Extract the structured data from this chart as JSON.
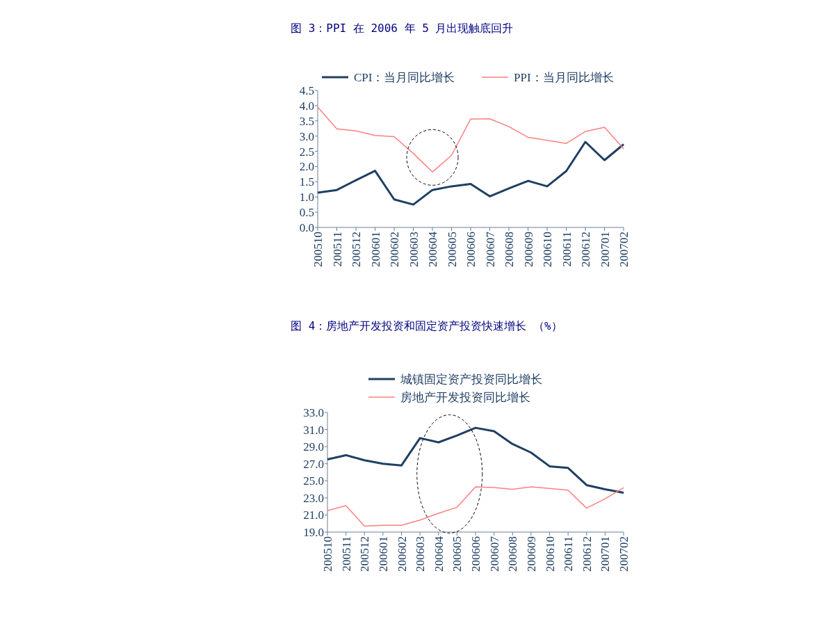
{
  "chart_data": [
    {
      "type": "line",
      "title": "图 3：PPI 在 2006 年 5 月出现触底回升",
      "categories": [
        "200510",
        "200511",
        "200512",
        "200601",
        "200602",
        "200603",
        "200604",
        "200605",
        "200606",
        "200607",
        "200608",
        "200609",
        "200610",
        "200611",
        "200612",
        "200701",
        "200702"
      ],
      "series": [
        {
          "name": "CPI：当月同比增长",
          "color": "#1f3f63",
          "values": [
            1.14,
            1.23,
            1.55,
            1.86,
            0.92,
            0.75,
            1.23,
            1.35,
            1.43,
            1.02,
            1.28,
            1.53,
            1.35,
            1.85,
            2.81,
            2.21,
            2.73
          ]
        },
        {
          "name": "PPI：当月同比增长",
          "color": "#ff7f7f",
          "values": [
            3.95,
            3.24,
            3.17,
            3.02,
            2.98,
            2.43,
            1.82,
            2.37,
            3.56,
            3.57,
            3.31,
            2.96,
            2.86,
            2.76,
            3.15,
            3.29,
            2.58
          ]
        }
      ],
      "ylim": [
        0,
        4.5
      ],
      "yticks": [
        {
          "value": 0,
          "label": "0.0"
        },
        {
          "value": 0.5,
          "label": "0.5"
        },
        {
          "value": 1,
          "label": "1.0"
        },
        {
          "value": 1.5,
          "label": "1.5"
        },
        {
          "value": 2,
          "label": "2.0"
        },
        {
          "value": 2.5,
          "label": "2.5"
        },
        {
          "value": 3,
          "label": "3.0"
        },
        {
          "value": 3.5,
          "label": "3.5"
        },
        {
          "value": 4,
          "label": "4.0"
        },
        {
          "value": 4.5,
          "label": "4.5"
        }
      ],
      "legend": "top",
      "grid": false
    },
    {
      "type": "line",
      "title": "图 4：房地产开发投资和固定资产投资快速增长      （%）",
      "categories": [
        "200510",
        "200511",
        "200512",
        "200601",
        "200602",
        "200603",
        "200604",
        "200605",
        "200606",
        "200607",
        "200608",
        "200609",
        "200610",
        "200611",
        "200612",
        "200701",
        "200702"
      ],
      "series": [
        {
          "name": "城镇固定资产投资同比增长",
          "color": "#1f3f63",
          "values": [
            27.5,
            28.0,
            27.4,
            27.0,
            26.8,
            30.0,
            29.5,
            30.3,
            31.2,
            30.8,
            29.3,
            28.3,
            26.7,
            26.5,
            24.5,
            24.0,
            23.6
          ]
        },
        {
          "name": "房地产开发投资同比增长",
          "color": "#ff7f7f",
          "values": [
            21.5,
            22.1,
            19.7,
            19.8,
            19.8,
            20.4,
            21.2,
            21.9,
            24.3,
            24.2,
            24.0,
            24.3,
            24.1,
            23.9,
            21.8,
            22.9,
            24.2
          ]
        }
      ],
      "ylim": [
        19,
        33
      ],
      "yticks": [
        {
          "value": 19,
          "label": "19.0"
        },
        {
          "value": 21,
          "label": "21.0"
        },
        {
          "value": 23,
          "label": "23.0"
        },
        {
          "value": 25,
          "label": "25.0"
        },
        {
          "value": 27,
          "label": "27.0"
        },
        {
          "value": 29,
          "label": "29.0"
        },
        {
          "value": 31,
          "label": "31.0"
        },
        {
          "value": 33,
          "label": "33.0"
        }
      ],
      "legend": "top",
      "grid": false
    }
  ]
}
